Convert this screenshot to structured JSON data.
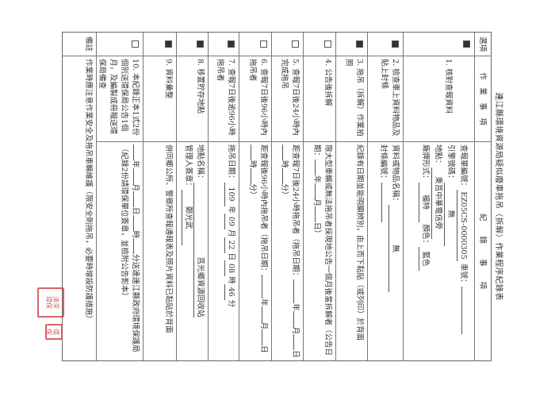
{
  "title": "連江縣環境資源局疑似廢車拖吊（拆解）作業程序紀錄表",
  "header": {
    "option": "選項",
    "task": "作　業　事　項",
    "record": "紀　　錄　　事　　項"
  },
  "items": [
    {
      "checked": true,
      "label": "1. 核對查報資料",
      "r": {
        "l1a": "查報單編號：",
        "report_no": "EZ05CS-0000305",
        "l1b": "車號：",
        "plate": "",
        "l2a": "引擎號碼：",
        "engine_no": "無",
        "l3a": "地點：",
        "location": "東莒中華電信旁",
        "l4a": "廠牌形式：",
        "brand": "福特",
        "l4b": "顏色：",
        "color": "藍色"
      }
    },
    {
      "checked": true,
      "label": "2. 檢查車上資料物品及貼上封條",
      "r": {
        "l1a": "資料或物品名稱：",
        "items": "無",
        "l2a": "封條編號：",
        "seal": ""
      }
    },
    {
      "checked": true,
      "label": "3. 拖吊（拆解）作業拍照",
      "r": {
        "text": "紀錄有日期並能明顯辨別，由上而下黏貼（或列印）於背面"
      }
    },
    {
      "checked": false,
      "label": "4. 公告後拆解",
      "r": {
        "text": "限大型車輛或無法拖吊者採現地公告一個月後當拆解者（公告日期：",
        "y": "年",
        "m": "月",
        "d": "日）"
      }
    },
    {
      "checked": false,
      "label": "5. 查報7日後24小時內完成拖吊",
      "r": {
        "text": "距查報7日後24小時拖吊者（拖吊日期：",
        "y": "年",
        "m": "月",
        "d": "日",
        "h": "時",
        "mi": "分）"
      }
    },
    {
      "checked": false,
      "label": "6. 查報7日後96小時內拖吊者",
      "r": {
        "text": "距查報後96小時內拖吊者（拖吊日期：",
        "y": "年",
        "m": "月",
        "d": "日",
        "h": "時",
        "mi": "分）"
      }
    },
    {
      "checked": true,
      "label": "7. 查報7日後逾96小時拖吊者",
      "r": {
        "text": "拖吊日期：",
        "year": "109",
        "y": "年",
        "month": "09",
        "m": "月",
        "day": "22",
        "d": "日",
        "hour": "08",
        "h": "時",
        "minute": "46",
        "mi": "分"
      }
    },
    {
      "checked": true,
      "label": "8. 移置貯存地點",
      "r": {
        "l1a": "地點名稱：",
        "place": "莒光鄉資源回收站",
        "l2a": "管理人簽章：",
        "manager": "鄭光武"
      }
    },
    {
      "checked": true,
      "label": "9. 資料彙整",
      "r": {
        "text": "併同鄉公所、警察所查報通報表及照片資料已黏貼於背面"
      }
    },
    {
      "checked": false,
      "label": "10. 本紀錄正本1式2份個別送環保局公告1個月，及編製成冊報送環保局備查",
      "r": {
        "y": "年",
        "m": "月",
        "d": "日",
        "h": "時",
        "text": "分送達連江縣政府環境保護局",
        "text2": "（紀錄2份請環保單位簽章，並檢附公告影本）"
      }
    }
  ],
  "remark": {
    "label": "備註",
    "text": "作業時應注意作業安全及拖吊車輛維護（限安全則拖吊，必要時增設防護措施）"
  },
  "stamps": {
    "large": "清潔隊環保局",
    "small": "環保"
  },
  "colors": {
    "stamp": "#d0484f",
    "ink": "#333333"
  }
}
